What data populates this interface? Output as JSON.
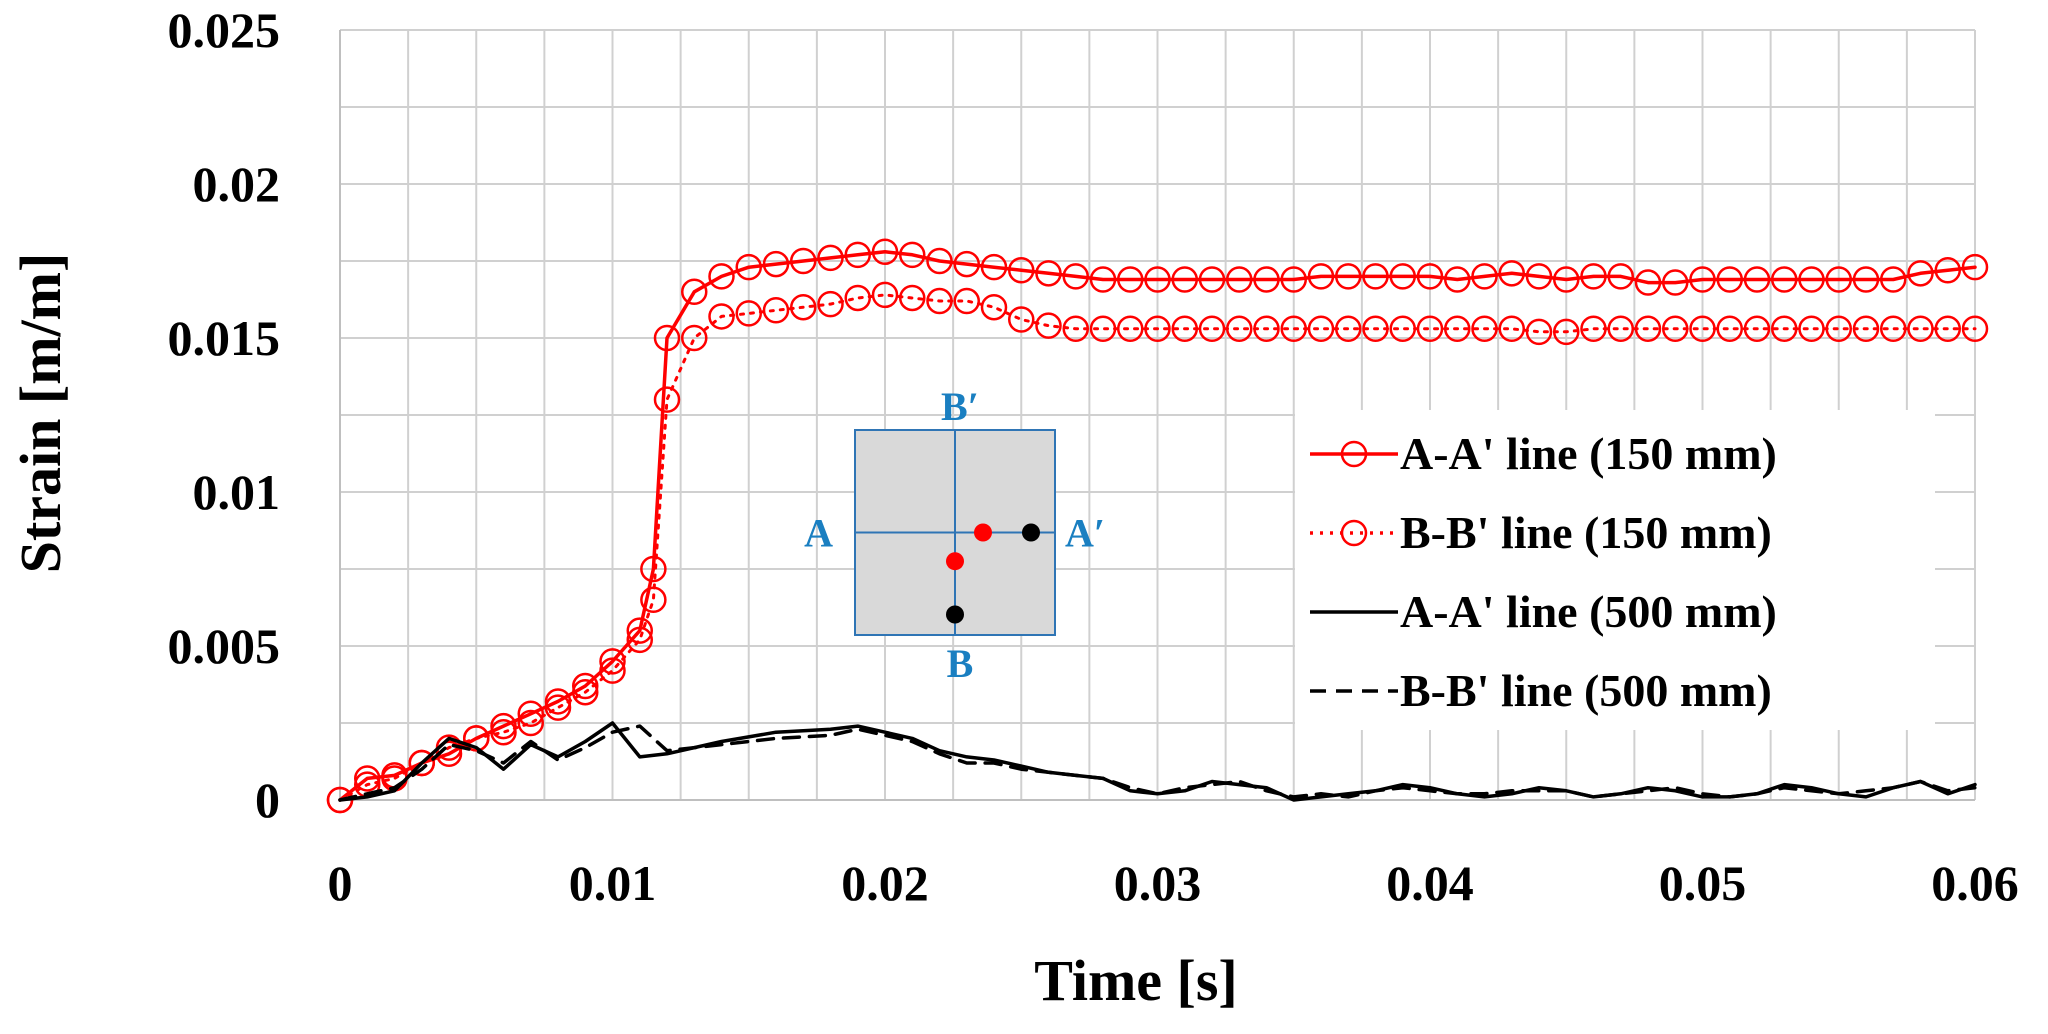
{
  "chart_data": {
    "type": "line",
    "title": "",
    "xlabel": "Time [s]",
    "ylabel": "Strain [m/m]",
    "xlim": [
      0,
      0.06
    ],
    "ylim": [
      0,
      0.025
    ],
    "x_ticks": [
      "0",
      "0.01",
      "0.02",
      "0.03",
      "0.04",
      "0.05",
      "0.06"
    ],
    "y_ticks": [
      "0",
      "0.005",
      "0.01",
      "0.015",
      "0.02",
      "0.025"
    ],
    "grid": true,
    "legend_position": "right",
    "series": [
      {
        "name": "A-A' line (150 mm)",
        "color": "#ff0000",
        "line": "solid",
        "marker": "open-circle",
        "x": [
          0,
          0.001,
          0.002,
          0.003,
          0.004,
          0.005,
          0.006,
          0.007,
          0.008,
          0.009,
          0.01,
          0.011,
          0.0115,
          0.012,
          0.013,
          0.014,
          0.015,
          0.016,
          0.017,
          0.018,
          0.019,
          0.02,
          0.021,
          0.022,
          0.023,
          0.024,
          0.025,
          0.026,
          0.027,
          0.028,
          0.029,
          0.03,
          0.031,
          0.032,
          0.033,
          0.034,
          0.035,
          0.036,
          0.037,
          0.038,
          0.039,
          0.04,
          0.041,
          0.042,
          0.043,
          0.044,
          0.045,
          0.046,
          0.047,
          0.048,
          0.049,
          0.05,
          0.051,
          0.052,
          0.053,
          0.054,
          0.055,
          0.056,
          0.057,
          0.058,
          0.059,
          0.06
        ],
        "y": [
          0,
          0.0007,
          0.0008,
          0.0012,
          0.0015,
          0.002,
          0.0024,
          0.0028,
          0.0032,
          0.0037,
          0.0045,
          0.0055,
          0.0075,
          0.015,
          0.0165,
          0.017,
          0.0173,
          0.0174,
          0.0175,
          0.0176,
          0.0177,
          0.0178,
          0.0177,
          0.0175,
          0.0174,
          0.0173,
          0.0172,
          0.0171,
          0.017,
          0.0169,
          0.0169,
          0.0169,
          0.0169,
          0.0169,
          0.0169,
          0.0169,
          0.0169,
          0.017,
          0.017,
          0.017,
          0.017,
          0.017,
          0.0169,
          0.017,
          0.0171,
          0.017,
          0.0169,
          0.017,
          0.017,
          0.0168,
          0.0168,
          0.0169,
          0.0169,
          0.0169,
          0.0169,
          0.0169,
          0.0169,
          0.0169,
          0.0169,
          0.0171,
          0.0172,
          0.0173
        ]
      },
      {
        "name": "B-B' line (150 mm)",
        "color": "#ff0000",
        "line": "dotted",
        "marker": "open-circle",
        "x": [
          0,
          0.001,
          0.002,
          0.003,
          0.004,
          0.005,
          0.006,
          0.007,
          0.008,
          0.009,
          0.01,
          0.011,
          0.0115,
          0.012,
          0.013,
          0.014,
          0.015,
          0.016,
          0.017,
          0.018,
          0.019,
          0.02,
          0.021,
          0.022,
          0.023,
          0.024,
          0.025,
          0.026,
          0.027,
          0.028,
          0.029,
          0.03,
          0.031,
          0.032,
          0.033,
          0.034,
          0.035,
          0.036,
          0.037,
          0.038,
          0.039,
          0.04,
          0.041,
          0.042,
          0.043,
          0.044,
          0.045,
          0.046,
          0.047,
          0.048,
          0.049,
          0.05,
          0.051,
          0.052,
          0.053,
          0.054,
          0.055,
          0.056,
          0.057,
          0.058,
          0.059,
          0.06
        ],
        "y": [
          0,
          0.0005,
          0.0007,
          0.0012,
          0.0017,
          0.002,
          0.0022,
          0.0025,
          0.003,
          0.0035,
          0.0042,
          0.0052,
          0.0065,
          0.013,
          0.015,
          0.0157,
          0.0158,
          0.0159,
          0.016,
          0.0161,
          0.0163,
          0.0164,
          0.0163,
          0.0162,
          0.0162,
          0.016,
          0.0156,
          0.0154,
          0.0153,
          0.0153,
          0.0153,
          0.0153,
          0.0153,
          0.0153,
          0.0153,
          0.0153,
          0.0153,
          0.0153,
          0.0153,
          0.0153,
          0.0153,
          0.0153,
          0.0153,
          0.0153,
          0.0153,
          0.0152,
          0.0152,
          0.0153,
          0.0153,
          0.0153,
          0.0153,
          0.0153,
          0.0153,
          0.0153,
          0.0153,
          0.0153,
          0.0153,
          0.0153,
          0.0153,
          0.0153,
          0.0153,
          0.0153
        ]
      },
      {
        "name": "A-A' line (500 mm)",
        "color": "#000000",
        "line": "solid",
        "marker": "none",
        "x": [
          0,
          0.001,
          0.002,
          0.003,
          0.004,
          0.005,
          0.006,
          0.007,
          0.008,
          0.009,
          0.01,
          0.011,
          0.012,
          0.014,
          0.016,
          0.018,
          0.019,
          0.02,
          0.021,
          0.022,
          0.023,
          0.024,
          0.025,
          0.026,
          0.027,
          0.028,
          0.029,
          0.03,
          0.031,
          0.032,
          0.033,
          0.034,
          0.035,
          0.036,
          0.037,
          0.038,
          0.039,
          0.04,
          0.041,
          0.042,
          0.043,
          0.044,
          0.045,
          0.046,
          0.047,
          0.048,
          0.049,
          0.05,
          0.051,
          0.052,
          0.053,
          0.054,
          0.055,
          0.056,
          0.057,
          0.058,
          0.059,
          0.06
        ],
        "y": [
          0,
          0.0001,
          0.0003,
          0.0012,
          0.002,
          0.0017,
          0.001,
          0.0018,
          0.0014,
          0.0019,
          0.0025,
          0.0014,
          0.0015,
          0.0019,
          0.0022,
          0.0023,
          0.0024,
          0.0022,
          0.002,
          0.0016,
          0.0014,
          0.0013,
          0.0011,
          0.0009,
          0.0008,
          0.0007,
          0.0003,
          0.0002,
          0.0003,
          0.0006,
          0.0005,
          0.0004,
          0.0,
          0.0001,
          0.0002,
          0.0003,
          0.0005,
          0.0004,
          0.0002,
          0.0001,
          0.0002,
          0.0004,
          0.0003,
          0.0001,
          0.0002,
          0.0004,
          0.0003,
          0.0001,
          0.0001,
          0.0002,
          0.0005,
          0.0004,
          0.0002,
          0.0001,
          0.0004,
          0.0006,
          0.0002,
          0.0005
        ]
      },
      {
        "name": "B-B' line (500 mm)",
        "color": "#000000",
        "line": "dashed",
        "marker": "none",
        "x": [
          0,
          0.001,
          0.002,
          0.003,
          0.004,
          0.005,
          0.006,
          0.007,
          0.008,
          0.009,
          0.01,
          0.011,
          0.012,
          0.014,
          0.016,
          0.018,
          0.019,
          0.02,
          0.021,
          0.022,
          0.023,
          0.024,
          0.025,
          0.026,
          0.027,
          0.028,
          0.029,
          0.03,
          0.031,
          0.032,
          0.033,
          0.034,
          0.035,
          0.036,
          0.037,
          0.038,
          0.039,
          0.04,
          0.041,
          0.042,
          0.043,
          0.044,
          0.045,
          0.046,
          0.047,
          0.048,
          0.049,
          0.05,
          0.051,
          0.052,
          0.053,
          0.054,
          0.055,
          0.056,
          0.057,
          0.058,
          0.059,
          0.06
        ],
        "y": [
          0,
          0.0002,
          0.0004,
          0.001,
          0.0018,
          0.0016,
          0.0012,
          0.0019,
          0.0013,
          0.0017,
          0.0022,
          0.0024,
          0.0016,
          0.0018,
          0.002,
          0.0021,
          0.0023,
          0.0021,
          0.0019,
          0.0015,
          0.0012,
          0.0012,
          0.001,
          0.0009,
          0.0008,
          0.0007,
          0.0004,
          0.0002,
          0.0004,
          0.0005,
          0.0006,
          0.0003,
          0.0001,
          0.0002,
          0.0001,
          0.0003,
          0.0004,
          0.0003,
          0.0002,
          0.0002,
          0.0003,
          0.0003,
          0.0003,
          0.0001,
          0.0002,
          0.0003,
          0.0004,
          0.0002,
          0.0001,
          0.0002,
          0.0004,
          0.0003,
          0.0002,
          0.0003,
          0.0004,
          0.0006,
          0.0003,
          0.0004
        ]
      }
    ],
    "inset": {
      "labels": {
        "top": "B′",
        "bottom": "B",
        "left": "A",
        "right": "A′"
      },
      "label_color": "#1a7fc1",
      "box_fill": "#d9d9d9",
      "box_stroke": "#2f75b5",
      "points": [
        {
          "u": 0.64,
          "v": 0.5,
          "color": "#ff0000"
        },
        {
          "u": 0.5,
          "v": 0.64,
          "color": "#ff0000"
        },
        {
          "u": 0.88,
          "v": 0.5,
          "color": "#000000"
        },
        {
          "u": 0.5,
          "v": 0.9,
          "color": "#000000"
        }
      ]
    }
  }
}
